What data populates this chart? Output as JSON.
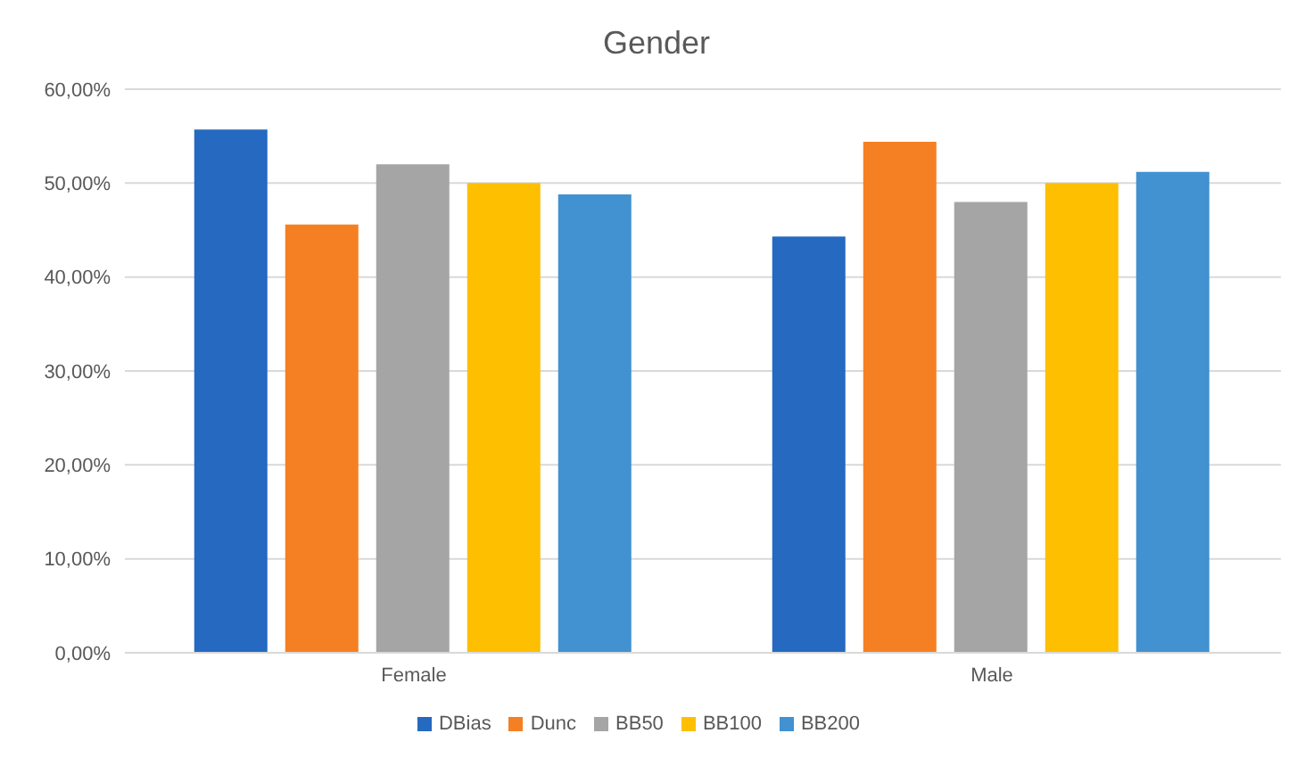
{
  "chart_data": {
    "type": "bar",
    "title": "Gender",
    "categories": [
      "Female",
      "Male"
    ],
    "series": [
      {
        "name": "DBias",
        "color": "#2569c0",
        "values": [
          55.7,
          44.3
        ]
      },
      {
        "name": "Dunc",
        "color": "#f58023",
        "values": [
          45.6,
          54.4
        ]
      },
      {
        "name": "BB50",
        "color": "#a5a5a5",
        "values": [
          52.0,
          48.0
        ]
      },
      {
        "name": "BB100",
        "color": "#fdbf00",
        "values": [
          50.0,
          50.0
        ]
      },
      {
        "name": "BB200",
        "color": "#4291d0",
        "values": [
          48.8,
          51.2
        ]
      }
    ],
    "ylim": [
      0,
      60
    ],
    "yticks": [
      {
        "value": 0,
        "label": "0,00%"
      },
      {
        "value": 10,
        "label": "10,00%"
      },
      {
        "value": 20,
        "label": "20,00%"
      },
      {
        "value": 30,
        "label": "30,00%"
      },
      {
        "value": 40,
        "label": "40,00%"
      },
      {
        "value": 50,
        "label": "50,00%"
      },
      {
        "value": 60,
        "label": "60,00%"
      }
    ],
    "grid": "y",
    "legend": "bottom"
  }
}
